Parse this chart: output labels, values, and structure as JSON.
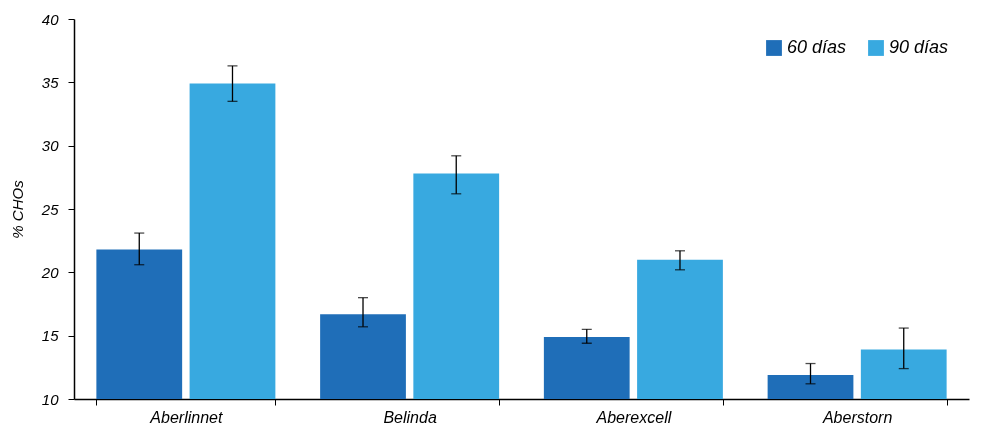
{
  "chart_data": {
    "type": "bar",
    "ylabel": "% CHOs",
    "categories": [
      "Aberlinnet",
      "Belinda",
      "Aberexcell",
      "Aberstorn"
    ],
    "series": [
      {
        "name": "60 días",
        "color": "#1f6eb8",
        "values": [
          21.8,
          16.7,
          14.9,
          11.9
        ],
        "errors": [
          [
            20.6,
            23.1
          ],
          [
            15.7,
            18.0
          ],
          [
            14.4,
            15.5
          ],
          [
            11.2,
            12.8
          ]
        ]
      },
      {
        "name": "90 días",
        "color": "#38a9e0",
        "values": [
          34.9,
          27.8,
          21.0,
          13.9
        ],
        "errors": [
          [
            33.5,
            36.3
          ],
          [
            26.2,
            29.2
          ],
          [
            20.2,
            21.7
          ],
          [
            12.4,
            15.6
          ]
        ]
      }
    ],
    "ylim": [
      10,
      40
    ],
    "yticks": [
      10,
      15,
      20,
      25,
      30,
      35,
      40
    ],
    "grid": false,
    "legend": "top right"
  }
}
